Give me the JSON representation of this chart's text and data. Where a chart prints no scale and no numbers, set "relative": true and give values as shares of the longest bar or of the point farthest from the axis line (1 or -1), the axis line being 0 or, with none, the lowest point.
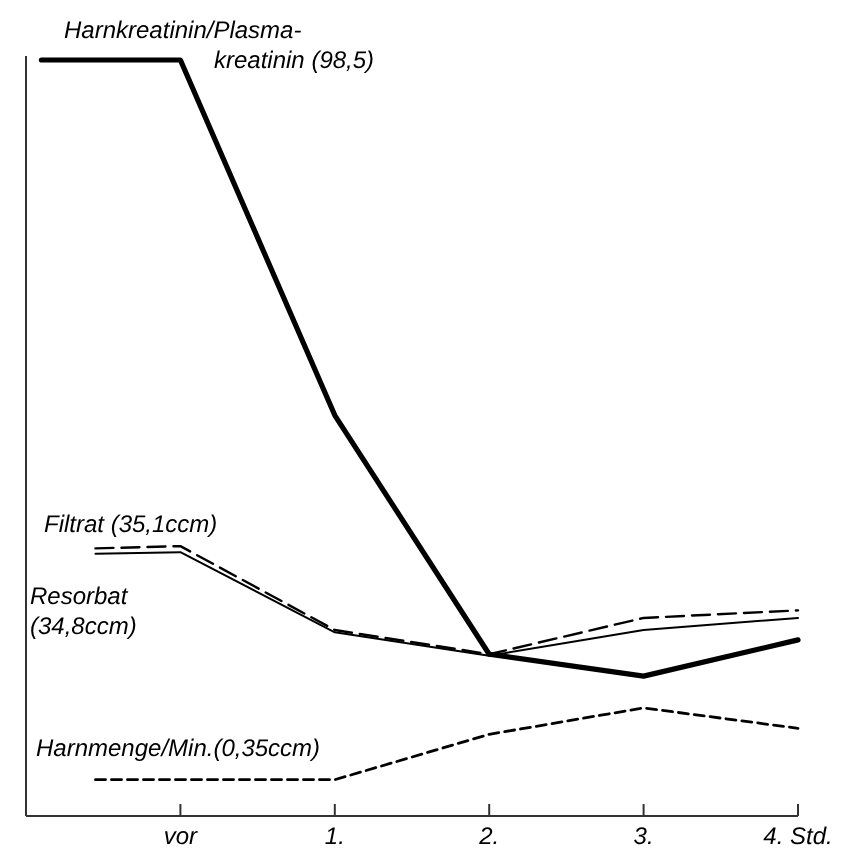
{
  "chart_data": {
    "type": "line",
    "relative": true,
    "xlim": [
      -1,
      4
    ],
    "xticks": [
      {
        "value": 0,
        "label": "vor"
      },
      {
        "value": 1,
        "label": "1."
      },
      {
        "value": 2,
        "label": "2."
      },
      {
        "value": 3,
        "label": "3."
      },
      {
        "value": 4,
        "label": "4. Std."
      }
    ],
    "series": [
      {
        "name": "Harnkreatinin/Plasma-\nkreatinin (98,5)",
        "color": "#000000",
        "line_style": "solid",
        "x": [
          -0.9,
          0,
          1,
          2,
          3,
          4
        ],
        "values": [
          1.0,
          1.0,
          0.53,
          0.214,
          0.185,
          0.233
        ]
      },
      {
        "name": "Filtrat (35,1ccm)",
        "color": "#000000",
        "line_style": "dashed",
        "x": [
          -0.55,
          0,
          1,
          2,
          3,
          4
        ],
        "values": [
          0.354,
          0.357,
          0.246,
          0.214,
          0.262,
          0.272
        ]
      },
      {
        "name": "Resorbat\n(34,8ccm)",
        "color": "#000000",
        "line_style": "solid",
        "x": [
          -0.55,
          0,
          1,
          2,
          3,
          4
        ],
        "values": [
          0.347,
          0.349,
          0.243,
          0.212,
          0.246,
          0.262
        ]
      },
      {
        "name": "Harnmenge/Min.(0,35ccm)",
        "color": "#000000",
        "line_style": "dotted",
        "x": [
          -0.55,
          0,
          1,
          2,
          3,
          4
        ],
        "values": [
          0.048,
          0.048,
          0.048,
          0.108,
          0.143,
          0.116
        ]
      }
    ]
  }
}
